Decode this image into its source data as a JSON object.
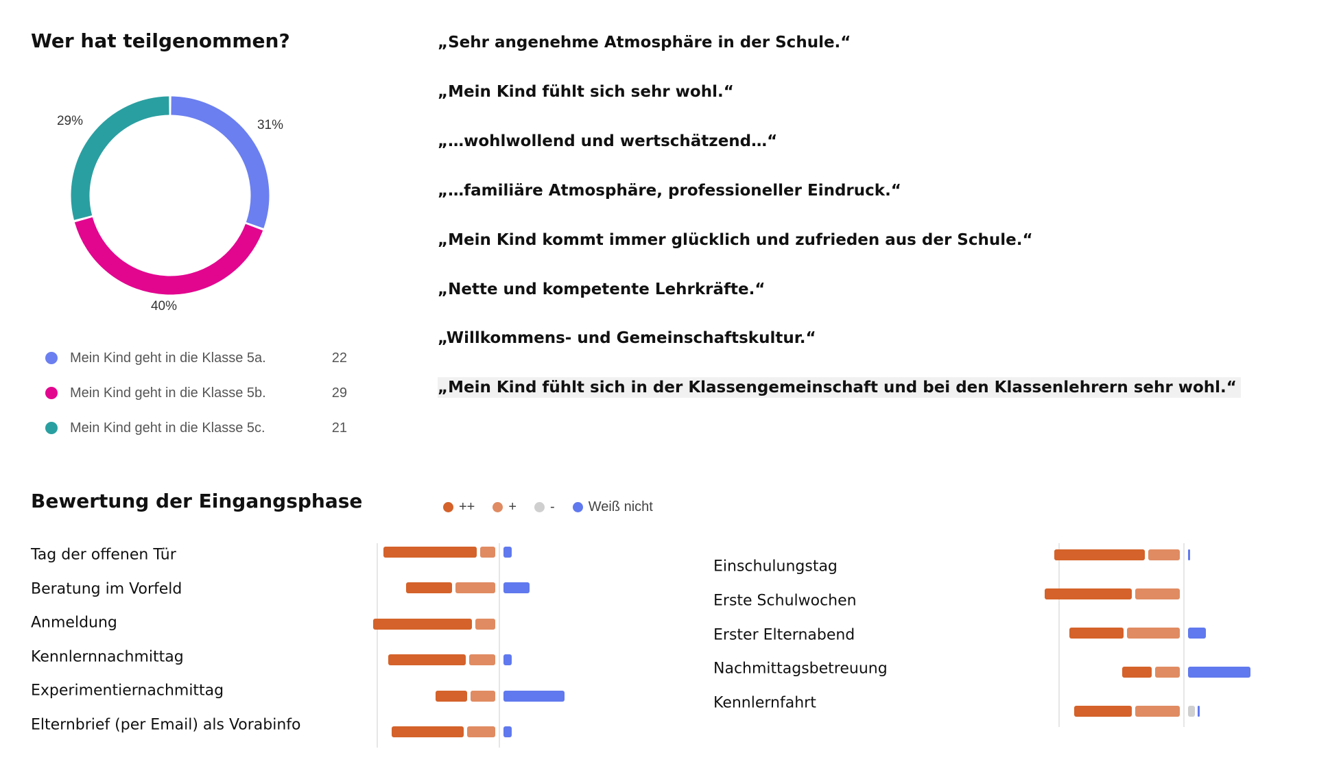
{
  "participation": {
    "title": "Wer hat teilgenommen?",
    "chart_data": {
      "type": "pie",
      "variant": "donut",
      "slices": [
        {
          "label": "Mein Kind geht in die Klasse 5a.",
          "value": 22,
          "percent_label": "31%",
          "color": "#6b7ff0"
        },
        {
          "label": "Mein Kind geht in die Klasse 5b.",
          "value": 29,
          "percent_label": "40%",
          "color": "#e2068f"
        },
        {
          "label": "Mein Kind geht in die Klasse 5c.",
          "value": 21,
          "percent_label": "29%",
          "color": "#2a9fa1"
        }
      ]
    }
  },
  "quotes": [
    "„Sehr angenehme Atmosphäre in der Schule.“",
    "„Mein Kind fühlt sich sehr wohl.“",
    "„…wohlwollend und wertschätzend…“",
    "„…familiäre Atmosphäre, professioneller Eindruck.“",
    "„Mein Kind kommt immer glücklich und zufrieden aus der Schule.“",
    "„Nette und kompetente Lehrkräfte.“",
    "„Willkommens- und Gemeinschaftskultur.“",
    "„Mein Kind fühlt sich in der Klassengemeinschaft und bei den Klassenlehrern sehr wohl.“"
  ],
  "rating": {
    "title": "Bewertung der Eingangsphase",
    "legend": [
      {
        "label": "++",
        "color": "#d4622a"
      },
      {
        "label": "+",
        "color": "#e08b62"
      },
      {
        "label": "-",
        "color": "#cfcfcf"
      },
      {
        "label": "Weiß nicht",
        "color": "#6079ee"
      }
    ],
    "chart_data": [
      {
        "type": "bar",
        "orientation": "horizontal-diverging",
        "note_values": "approximate, read from bar lengths (no axis printed)",
        "categories": [
          "Tag der offenen Tür",
          "Beratung im Vorfeld",
          "Anmeldung",
          "Kennlernnachmittag",
          "Experimentiernachmittag",
          "Elternbrief (per Email) als Vorabinfo"
        ],
        "series": [
          {
            "name": "++",
            "values": [
              57,
              28,
              60,
              47,
              19,
              44
            ]
          },
          {
            "name": "+",
            "values": [
              9,
              24,
              12,
              16,
              15,
              17
            ]
          },
          {
            "name": "-",
            "values": [
              0,
              0,
              0,
              0,
              0,
              0
            ]
          },
          {
            "name": "Weiß nicht",
            "values": [
              5,
              16,
              0,
              5,
              37,
              5
            ]
          }
        ]
      },
      {
        "type": "bar",
        "orientation": "horizontal-diverging",
        "categories": [
          "Einschulungstag",
          "Erste Schulwochen",
          "Erster Elternabend",
          "Nachmittagsbetreuung",
          "Kennlernfahrt"
        ],
        "series": [
          {
            "name": "++",
            "values": [
              55,
              53,
              33,
              18,
              35
            ]
          },
          {
            "name": "+",
            "values": [
              19,
              27,
              32,
              15,
              27
            ]
          },
          {
            "name": "-",
            "values": [
              0,
              0,
              0,
              0,
              4
            ]
          },
          {
            "name": "Weiß nicht",
            "values": [
              1,
              0,
              11,
              38,
              1
            ]
          }
        ]
      }
    ]
  }
}
